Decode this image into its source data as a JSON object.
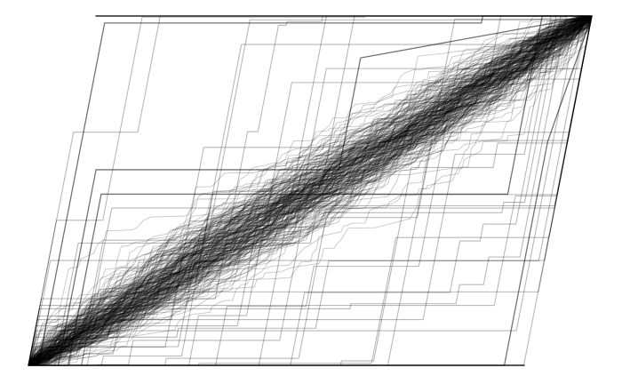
{
  "chart_data": {
    "type": "line",
    "title": "",
    "xlabel": "",
    "ylabel": "",
    "xlim": [
      0,
      1
    ],
    "ylim": [
      0,
      1
    ],
    "grid": false,
    "legend": "none",
    "axes_visible": false,
    "shear": 0.12,
    "colors": {
      "line": "#000000",
      "background": "#ffffff"
    },
    "series_count": 260,
    "random_seed": 20240607,
    "points_per_series": 90,
    "stepped_series_count": 28,
    "highlight_series": [
      {
        "name": "",
        "x": [
          0.0,
          0.08,
          0.08,
          0.9,
          0.9,
          1.0
        ],
        "y": [
          0.0,
          0.0,
          0.49,
          0.49,
          1.0,
          1.0
        ]
      },
      {
        "name": "",
        "x": [
          0.0,
          0.02,
          0.02,
          0.78,
          0.78,
          1.0
        ],
        "y": [
          0.0,
          0.0,
          0.98,
          0.98,
          1.0,
          1.0
        ]
      },
      {
        "name": "",
        "x": [
          0.0,
          0.96,
          0.96,
          1.0
        ],
        "y": [
          0.0,
          0.0,
          0.64,
          1.0
        ]
      },
      {
        "name": "",
        "x": [
          0.0,
          0.06,
          0.06,
          0.55,
          0.55,
          1.0
        ],
        "y": [
          0.0,
          0.0,
          0.56,
          0.56,
          0.88,
          1.0
        ]
      }
    ]
  }
}
